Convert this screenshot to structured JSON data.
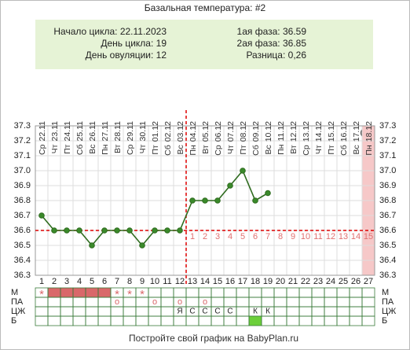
{
  "chart_data": {
    "type": "line",
    "title": "Базальная температура: #2",
    "info_left": [
      "Начало цикла: 22.11.2023",
      "День цикла: 19",
      "День овуляции: 12"
    ],
    "info_right": [
      "1ая фаза: 36.59",
      "2ая фаза: 36.85",
      "Разница: 0,26"
    ],
    "weekdays": [
      "Ср",
      "Чт",
      "Пт",
      "Сб",
      "Вс",
      "Пн",
      "Вт",
      "Ср",
      "Чт",
      "Пт",
      "Сб",
      "Вс",
      "Пн",
      "Вт",
      "Ср",
      "Чт",
      "Пт",
      "Сб",
      "Вс",
      "Пн",
      "Вт",
      "Ср",
      "Чт",
      "Пт",
      "Сб",
      "Вс",
      "Пн"
    ],
    "dates": [
      "22.11",
      "23.11",
      "24.11",
      "25.11",
      "26.11",
      "27.11",
      "28.11",
      "29.11",
      "30.11",
      "01.12",
      "02.12",
      "03.12",
      "04.12",
      "05.12",
      "06.12",
      "07.12",
      "08.12",
      "09.12",
      "10.12",
      "11.12",
      "12.12",
      "13.12",
      "14.12",
      "15.12",
      "16.12",
      "17.12",
      "18.12"
    ],
    "categories": [
      1,
      2,
      3,
      4,
      5,
      6,
      7,
      8,
      9,
      10,
      11,
      12,
      13,
      14,
      15,
      16,
      17,
      18,
      19,
      20,
      21,
      22,
      23,
      24,
      25,
      26,
      27
    ],
    "values": [
      36.7,
      36.6,
      36.6,
      36.6,
      36.5,
      36.6,
      36.6,
      36.6,
      36.5,
      36.6,
      36.6,
      36.6,
      36.8,
      36.8,
      36.8,
      36.9,
      37.0,
      36.8,
      36.85,
      null,
      null,
      null,
      null,
      null,
      null,
      null,
      null
    ],
    "color": "#2e6b1e",
    "ylim": [
      36.3,
      37.3
    ],
    "yticks": [
      36.3,
      36.4,
      36.5,
      36.6,
      36.7,
      36.8,
      36.9,
      {
        "value": 37.0,
        "label": "37.0"
      },
      37.1,
      37.2,
      37.3
    ],
    "grid": true,
    "coverline": 36.6,
    "ovulation_day": 12,
    "phase_days": [
      null,
      null,
      null,
      null,
      null,
      null,
      null,
      null,
      null,
      null,
      null,
      null,
      1,
      2,
      3,
      4,
      5,
      6,
      7,
      8,
      9,
      10,
      11,
      12,
      13,
      14,
      15
    ],
    "highlight_days": [
      27
    ],
    "rows": [
      {
        "label": "М",
        "cells": [
          "*",
          null,
          null,
          null,
          null,
          null,
          "*",
          "*",
          "*",
          null,
          null,
          null,
          null,
          null,
          null,
          null,
          null,
          null,
          null,
          null,
          null,
          null,
          null,
          null,
          null,
          null,
          null
        ],
        "filled_days": [
          2,
          3,
          4,
          5,
          6
        ]
      },
      {
        "label": "ПА",
        "cells": [
          null,
          null,
          null,
          null,
          null,
          null,
          "о",
          null,
          null,
          "о",
          null,
          "о",
          null,
          "о",
          null,
          null,
          null,
          null,
          null,
          null,
          null,
          null,
          null,
          null,
          null,
          null,
          null
        ]
      },
      {
        "label": "ЦЖ",
        "cells": [
          null,
          null,
          null,
          null,
          null,
          null,
          null,
          null,
          null,
          null,
          null,
          "Я",
          "С",
          "С",
          "С",
          "С",
          null,
          "К",
          "К",
          null,
          null,
          null,
          null,
          null,
          null,
          null,
          null
        ]
      },
      {
        "label": "Б",
        "cells": [
          null,
          null,
          null,
          null,
          null,
          null,
          null,
          null,
          null,
          null,
          null,
          null,
          null,
          null,
          null,
          null,
          null,
          null,
          null,
          null,
          null,
          null,
          null,
          null,
          null,
          null,
          null
        ],
        "filled_days": [
          18
        ]
      }
    ],
    "footer": "Постройте свой график на BabyPlan.ru"
  }
}
